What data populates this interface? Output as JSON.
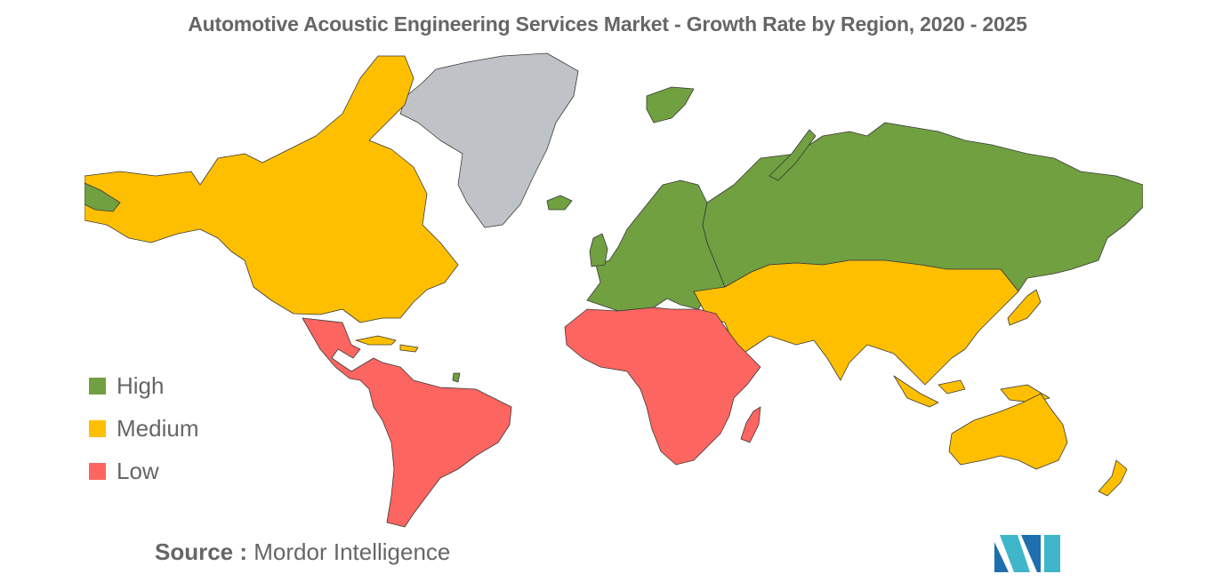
{
  "title": "Automotive Acoustic Engineering Services Market - Growth Rate by Region, 2020 - 2025",
  "legend": [
    {
      "label": "High",
      "color": "#70a040"
    },
    {
      "label": "Medium",
      "color": "#fdbf00"
    },
    {
      "label": "Low",
      "color": "#fd6560"
    }
  ],
  "unclassified_color": "#bfc3c8",
  "source": {
    "prefix": "Source :",
    "name": "Mordor Intelligence"
  },
  "regions": [
    {
      "name": "North America",
      "level": "Medium"
    },
    {
      "name": "Latin America",
      "level": "Low"
    },
    {
      "name": "Europe",
      "level": "High"
    },
    {
      "name": "Russia",
      "level": "High"
    },
    {
      "name": "Asia-Pacific",
      "level": "Medium"
    },
    {
      "name": "Middle East",
      "level": "Medium"
    },
    {
      "name": "Africa",
      "level": "Low"
    },
    {
      "name": "Greenland",
      "level": "None"
    }
  ]
}
